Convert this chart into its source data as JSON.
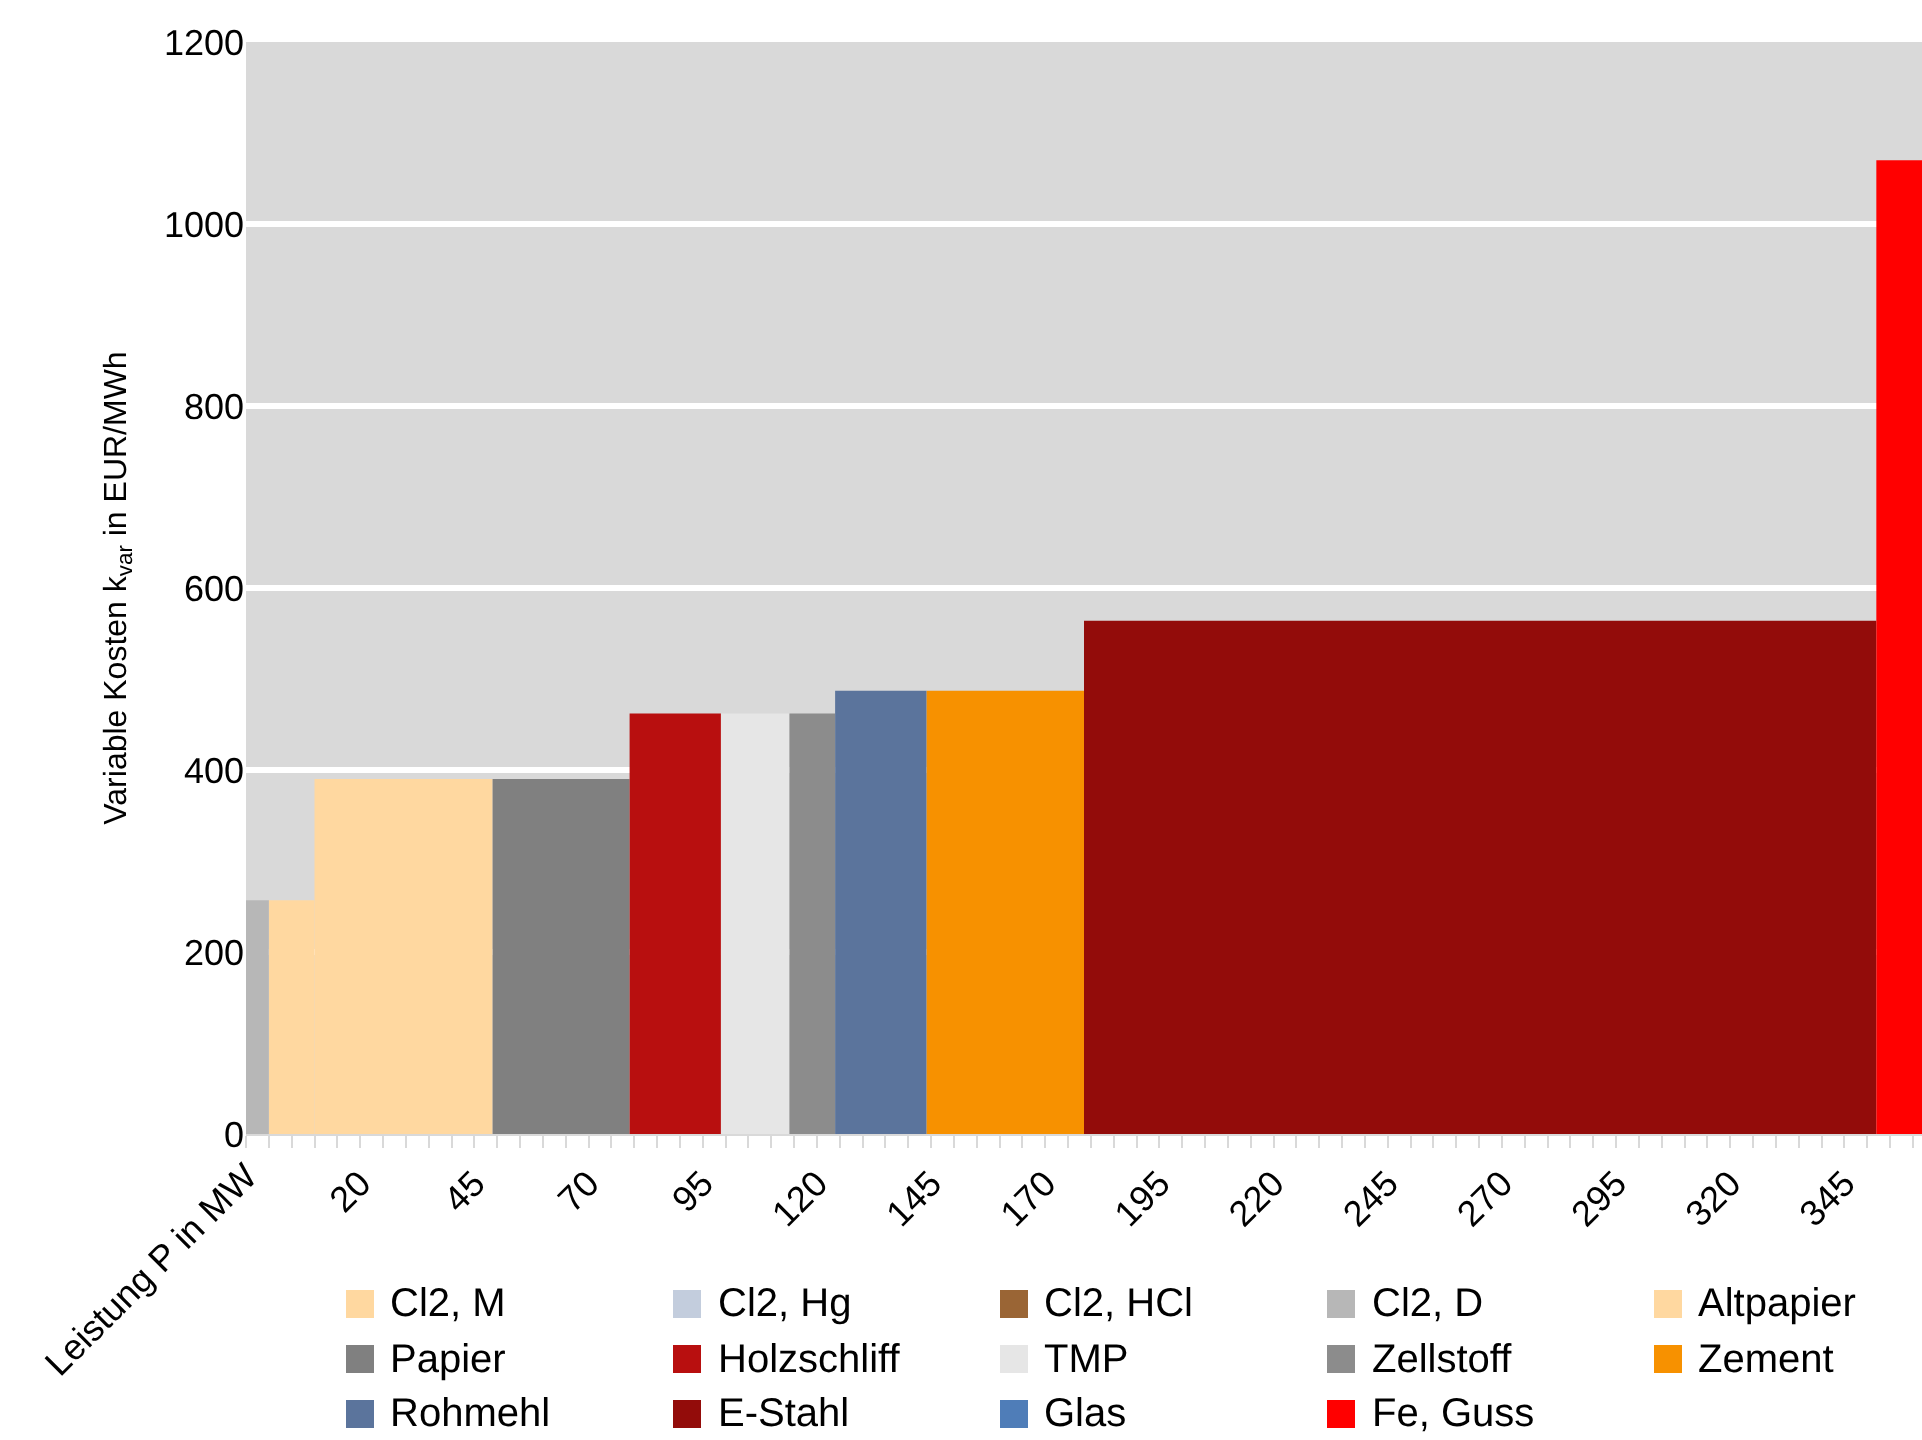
{
  "chart_data": {
    "type": "area",
    "xlabel": "Leistung P in MW",
    "ylabel": "Variable Kosten k$_{var}$ in EUR/MWh",
    "xlim": [
      -5,
      362
    ],
    "ylim": [
      0,
      1200
    ],
    "yticks": [
      0,
      200,
      400,
      600,
      800,
      1000,
      1200
    ],
    "xticks": [
      {
        "value": -5,
        "label": null
      },
      {
        "value": 0,
        "label": null
      },
      {
        "value": 5,
        "label": null
      },
      {
        "value": 10,
        "label": null
      },
      {
        "value": 15,
        "label": null
      },
      20,
      {
        "value": 25,
        "label": null
      },
      {
        "value": 30,
        "label": null
      },
      {
        "value": 35,
        "label": null
      },
      {
        "value": 40,
        "label": null
      },
      45,
      {
        "value": 50,
        "label": null
      },
      {
        "value": 55,
        "label": null
      },
      {
        "value": 60,
        "label": null
      },
      {
        "value": 65,
        "label": null
      },
      70,
      {
        "value": 75,
        "label": null
      },
      {
        "value": 80,
        "label": null
      },
      {
        "value": 85,
        "label": null
      },
      {
        "value": 90,
        "label": null
      },
      95,
      {
        "value": 100,
        "label": null
      },
      {
        "value": 105,
        "label": null
      },
      {
        "value": 110,
        "label": null
      },
      {
        "value": 115,
        "label": null
      },
      120,
      {
        "value": 125,
        "label": null
      },
      {
        "value": 130,
        "label": null
      },
      {
        "value": 135,
        "label": null
      },
      {
        "value": 140,
        "label": null
      },
      145,
      {
        "value": 150,
        "label": null
      },
      {
        "value": 155,
        "label": null
      },
      {
        "value": 160,
        "label": null
      },
      {
        "value": 165,
        "label": null
      },
      170,
      {
        "value": 175,
        "label": null
      },
      {
        "value": 180,
        "label": null
      },
      {
        "value": 185,
        "label": null
      },
      {
        "value": 190,
        "label": null
      },
      195,
      {
        "value": 200,
        "label": null
      },
      {
        "value": 205,
        "label": null
      },
      {
        "value": 210,
        "label": null
      },
      {
        "value": 215,
        "label": null
      },
      220,
      {
        "value": 225,
        "label": null
      },
      {
        "value": 230,
        "label": null
      },
      {
        "value": 235,
        "label": null
      },
      {
        "value": 240,
        "label": null
      },
      245,
      {
        "value": 250,
        "label": null
      },
      {
        "value": 255,
        "label": null
      },
      {
        "value": 260,
        "label": null
      },
      {
        "value": 265,
        "label": null
      },
      270,
      {
        "value": 275,
        "label": null
      },
      {
        "value": 280,
        "label": null
      },
      {
        "value": 285,
        "label": null
      },
      {
        "value": 290,
        "label": null
      },
      295,
      {
        "value": 300,
        "label": null
      },
      {
        "value": 305,
        "label": null
      },
      {
        "value": 310,
        "label": null
      },
      {
        "value": 315,
        "label": null
      },
      320,
      {
        "value": 325,
        "label": null
      },
      {
        "value": 330,
        "label": null
      },
      {
        "value": 335,
        "label": null
      },
      {
        "value": 340,
        "label": null
      },
      345,
      {
        "value": 350,
        "label": null
      },
      {
        "value": 355,
        "label": null
      },
      {
        "value": 360,
        "label": null
      }
    ],
    "grid": "y",
    "legend": "bottom",
    "series": [
      {
        "name": "Cl2, M",
        "color": "#ffd8a0",
        "x": [
          0,
          10
        ],
        "values": [
          257,
          257
        ]
      },
      {
        "name": "Cl2, Hg",
        "color": "#c3cddd"
      },
      {
        "name": "Cl2, HCl",
        "color": "#9a6535"
      },
      {
        "name": "Cl2, D",
        "color": "#b7b7b7",
        "x": [
          -5,
          0
        ],
        "values": [
          257,
          257
        ]
      },
      {
        "name": "Altpapier",
        "color": "#ffd8a0",
        "x": [
          10,
          49
        ],
        "values": [
          390,
          390
        ]
      },
      {
        "name": "Papier",
        "color": "#808080",
        "x": [
          49,
          79
        ],
        "values": [
          390,
          390
        ]
      },
      {
        "name": "Holzschliff",
        "color": "#b80f0f",
        "x": [
          79,
          99
        ],
        "values": [
          462,
          462
        ]
      },
      {
        "name": "TMP",
        "color": "#e6e6e6",
        "x": [
          99,
          114
        ],
        "values": [
          462,
          462
        ]
      },
      {
        "name": "Zellstoff",
        "color": "#8c8c8c",
        "x": [
          114,
          124
        ],
        "values": [
          462,
          462
        ]
      },
      {
        "name": "Zement",
        "color": "#f79100",
        "x": [
          144,
          178.5
        ],
        "values": [
          487,
          487
        ]
      },
      {
        "name": "Rohmehl",
        "color": "#5b749c",
        "x": [
          124,
          144
        ],
        "values": [
          487,
          487
        ]
      },
      {
        "name": "E-Stahl",
        "color": "#930c0a",
        "x": [
          178.5,
          352
        ],
        "values": [
          564,
          564
        ]
      },
      {
        "name": "Glas",
        "color": "#4f7db8"
      },
      {
        "name": "Fe, Guss",
        "color": "#ff0000",
        "x": [
          352,
          362
        ],
        "values": [
          1070,
          1070
        ]
      }
    ]
  }
}
